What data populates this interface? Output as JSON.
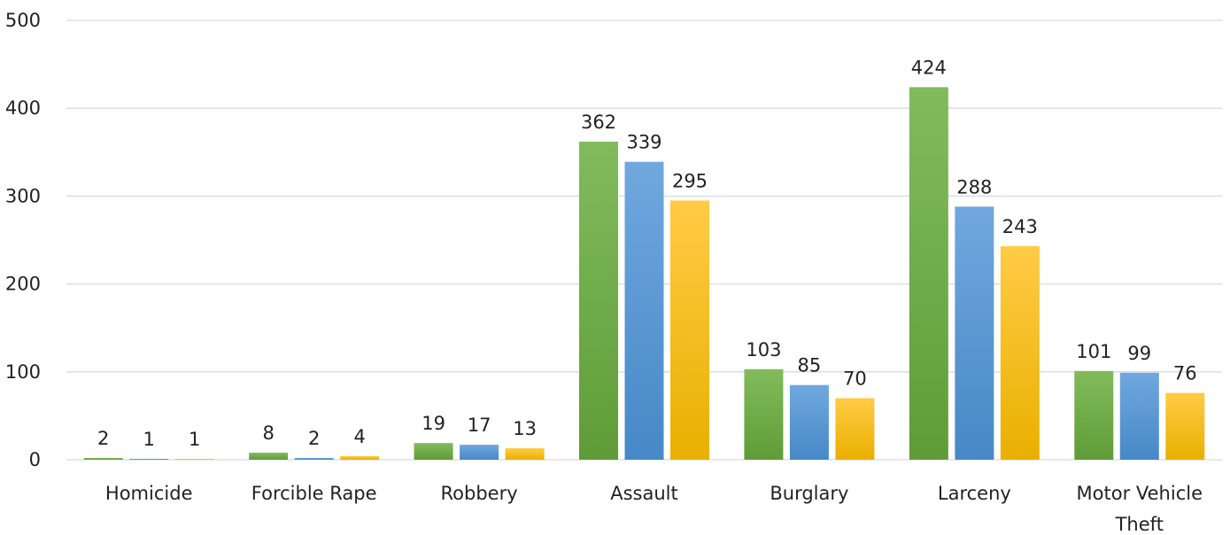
{
  "chart_data": {
    "type": "bar",
    "categories": [
      "Homicide",
      "Forcible Rape",
      "Robbery",
      "Assault",
      "Burglary",
      "Larceny",
      "Motor Vehicle Theft"
    ],
    "category_display_lines": [
      [
        "Homicide"
      ],
      [
        "Forcible Rape"
      ],
      [
        "Robbery"
      ],
      [
        "Assault"
      ],
      [
        "Burglary"
      ],
      [
        "Larceny"
      ],
      [
        "Motor Vehicle",
        "Theft"
      ]
    ],
    "series": [
      {
        "values": [
          2,
          8,
          19,
          362,
          103,
          424,
          101
        ],
        "color": "#70ad47",
        "color_light": "#82bb5c",
        "color_dark": "#5f9c37"
      },
      {
        "values": [
          1,
          2,
          17,
          339,
          85,
          288,
          99
        ],
        "color": "#5b9bd5",
        "color_light": "#70a8de",
        "color_dark": "#4788c7"
      },
      {
        "values": [
          1,
          4,
          13,
          295,
          70,
          243,
          76
        ],
        "color": "#ffc000",
        "color_light": "#ffcb45",
        "color_dark": "#e9b000"
      }
    ],
    "yticks": [
      0,
      100,
      200,
      300,
      400,
      500
    ],
    "ylim": [
      0,
      500
    ],
    "grid": true,
    "legend": "none",
    "data_labels": true
  }
}
